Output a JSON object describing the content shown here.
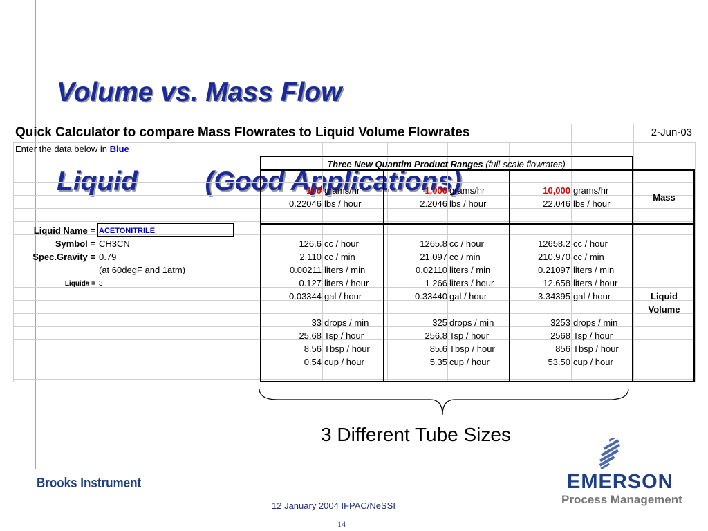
{
  "title": {
    "line1": "Volume vs. Mass Flow",
    "line2": "Liquid         (Good Applications)"
  },
  "sheet": {
    "header": "Quick Calculator to compare Mass Flowrates to Liquid Volume Flowrates",
    "date": "2-Jun-03",
    "enter_prefix": "Enter the data below in ",
    "enter_blue": "Blue",
    "ranges_title": "Three New Quantim Product Ranges",
    "ranges_sub": " (full-scale flowrates)",
    "mass_label": "Mass",
    "volume_label_1": "Liquid",
    "volume_label_2": "Volume",
    "liquid_name_label": "Liquid Name =",
    "liquid_name_value": "ACETONITRILE",
    "symbol_label": "Symbol =",
    "symbol_value": "CH3CN",
    "sg_label": "Spec.Gravity =",
    "sg_value": "0.79",
    "conditions": "(at 60degF and 1atm)",
    "liquid_num_label": "Liquid# =",
    "liquid_num_value": "3",
    "mass_rows": [
      {
        "v": [
          "100",
          "1,000",
          "10,000"
        ],
        "u": "grams/hr",
        "red": true
      },
      {
        "v": [
          "0.22046",
          "2.2046",
          "22.046"
        ],
        "u": "lbs / hour",
        "red": false
      }
    ],
    "volume_rows": [
      {
        "v": [
          "126.6",
          "1265.8",
          "12658.2"
        ],
        "u": "cc / hour"
      },
      {
        "v": [
          "2.110",
          "21.097",
          "210.970"
        ],
        "u": "cc / min"
      },
      {
        "v": [
          "0.00211",
          "0.02110",
          "0.21097"
        ],
        "u": "liters / min"
      },
      {
        "v": [
          "0.127",
          "1.266",
          "12.658"
        ],
        "u": "liters / hour"
      },
      {
        "v": [
          "0.03344",
          "0.33440",
          "3.34395"
        ],
        "u": "gal / hour"
      },
      {
        "v": [
          "",
          "",
          ""
        ],
        "u": ""
      },
      {
        "v": [
          "33",
          "325",
          "3253"
        ],
        "u": "drops / min"
      },
      {
        "v": [
          "25.68",
          "256.8",
          "2568"
        ],
        "u": "Tsp / hour"
      },
      {
        "v": [
          "8.56",
          "85.6",
          "856"
        ],
        "u": "Tbsp / hour"
      },
      {
        "v": [
          "0.54",
          "5.35",
          "53.50"
        ],
        "u": "cup / hour"
      }
    ]
  },
  "annotation": "3 Different Tube Sizes",
  "footer": {
    "brooks": "Brooks Instrument",
    "text": "12 January 2004 IFPAC/NeSSI",
    "page": "14"
  },
  "logo": {
    "emerson": "EMERSON",
    "pm": "Process Management"
  }
}
